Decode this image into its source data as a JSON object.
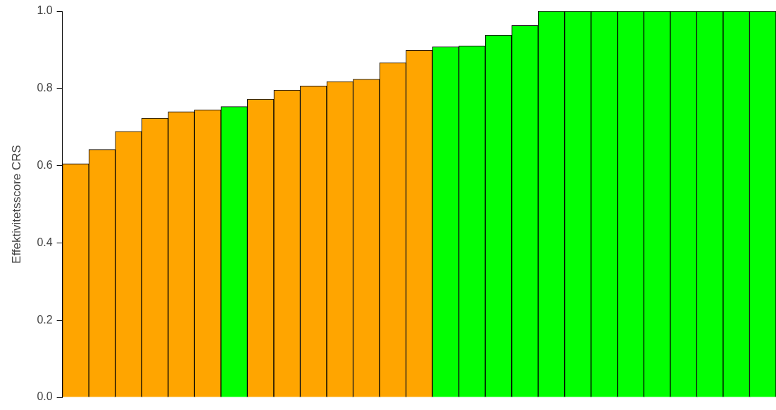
{
  "chart_data": {
    "type": "bar",
    "ylabel": "Effektivitetsscore CRS",
    "categories": [
      null,
      null,
      null,
      null,
      null,
      null,
      null,
      null,
      null,
      null,
      null,
      null,
      null,
      null,
      null,
      null,
      null,
      null,
      null,
      null,
      null,
      null,
      null,
      null,
      null,
      null,
      null
    ],
    "values": [
      0.605,
      0.642,
      0.689,
      0.723,
      0.74,
      0.745,
      0.753,
      0.772,
      0.796,
      0.807,
      0.818,
      0.824,
      0.867,
      0.899,
      0.908,
      0.91,
      0.938,
      0.963,
      1.0,
      1.0,
      1.0,
      1.0,
      1.0,
      1.0,
      1.0,
      1.0,
      1.0
    ],
    "colors": [
      "#ffa500",
      "#ffa500",
      "#ffa500",
      "#ffa500",
      "#ffa500",
      "#ffa500",
      "#00ff00",
      "#ffa500",
      "#ffa500",
      "#ffa500",
      "#ffa500",
      "#ffa500",
      "#ffa500",
      "#ffa500",
      "#00ff00",
      "#00ff00",
      "#00ff00",
      "#00ff00",
      "#00ff00",
      "#00ff00",
      "#00ff00",
      "#00ff00",
      "#00ff00",
      "#00ff00",
      "#00ff00",
      "#00ff00",
      "#00ff00"
    ],
    "ylim": [
      0,
      1
    ],
    "yticks": [
      {
        "value": 0,
        "label": "0.0"
      },
      {
        "value": 0.2,
        "label": "0.2"
      },
      {
        "value": 0.4,
        "label": "0.4"
      },
      {
        "value": 0.6,
        "label": "0.6"
      },
      {
        "value": 0.8,
        "label": "0.8"
      },
      {
        "value": 1,
        "label": "1.0"
      }
    ],
    "grid": false,
    "legend": false
  }
}
